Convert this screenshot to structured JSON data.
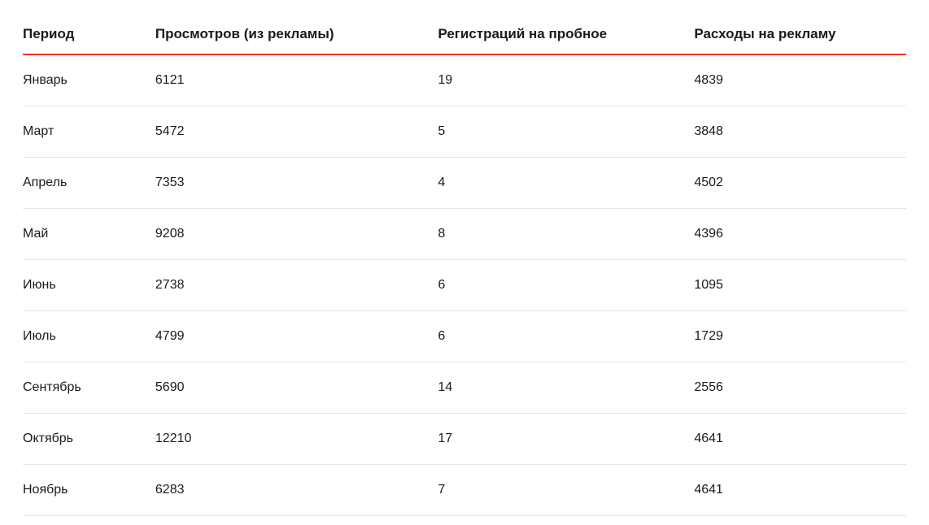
{
  "table": {
    "type": "table",
    "background_color": "#ffffff",
    "header_border_color": "#ee3524",
    "header_border_width": 2,
    "row_border_color": "#e5e5e5",
    "row_border_width": 1,
    "header_font_weight": 700,
    "header_font_size": 17,
    "body_font_size": 16,
    "text_color": "#1a1a1a",
    "column_widths_pct": [
      15,
      32,
      29,
      24
    ],
    "columns": [
      "Период",
      "Просмотров (из рекламы)",
      "Регистраций на пробное",
      "Расходы на рекламу"
    ],
    "rows": [
      [
        "Январь",
        "6121",
        "19",
        "4839"
      ],
      [
        "Март",
        "5472",
        "5",
        "3848"
      ],
      [
        "Апрель",
        "7353",
        "4",
        "4502"
      ],
      [
        "Май",
        "9208",
        "8",
        "4396"
      ],
      [
        "Июнь",
        "2738",
        "6",
        "1095"
      ],
      [
        "Июль",
        "4799",
        "6",
        "1729"
      ],
      [
        "Сентябрь",
        "5690",
        "14",
        "2556"
      ],
      [
        "Октябрь",
        "12210",
        "17",
        "4641"
      ],
      [
        "Ноябрь",
        "6283",
        "7",
        "4641"
      ]
    ]
  }
}
